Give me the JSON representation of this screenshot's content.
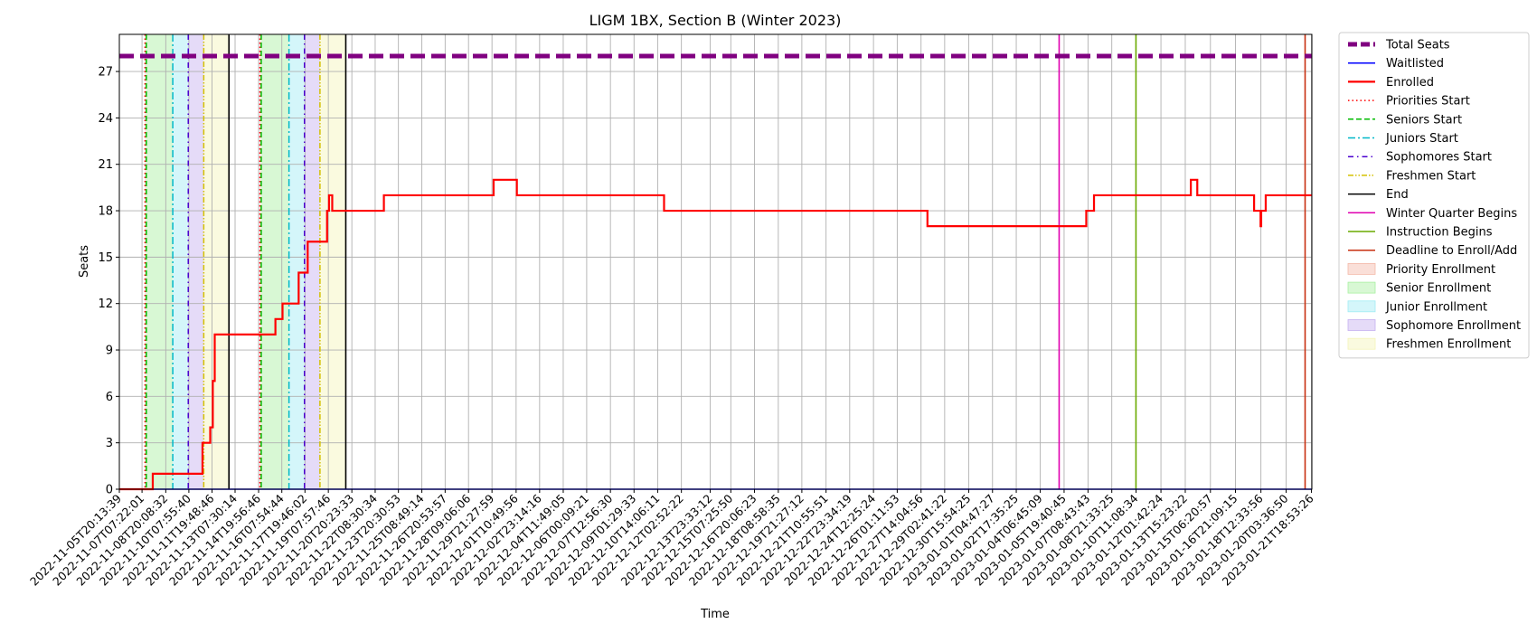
{
  "chart_data": {
    "type": "line",
    "title": "LIGM 1BX, Section B (Winter 2023)",
    "xlabel": "Time",
    "ylabel": "Seats",
    "ylim": [
      0,
      29.4
    ],
    "yticks": [
      0,
      3,
      6,
      9,
      12,
      15,
      18,
      21,
      24,
      27
    ],
    "xlim": [
      "2022-11-05T20:13:39",
      "2023-01-21T19:30:00"
    ],
    "xticks": [
      "2022-11-05T20:13:39",
      "2022-11-07T07:22:01",
      "2022-11-08T20:08:32",
      "2022-11-10T07:55:40",
      "2022-11-11T19:48:46",
      "2022-11-13T07:30:14",
      "2022-11-14T19:56:46",
      "2022-11-16T07:54:44",
      "2022-11-17T19:46:02",
      "2022-11-19T07:57:46",
      "2022-11-20T20:23:33",
      "2022-11-22T08:30:34",
      "2022-11-23T20:30:53",
      "2022-11-25T08:49:14",
      "2022-11-26T20:53:57",
      "2022-11-28T09:06:06",
      "2022-11-29T21:27:59",
      "2022-12-01T10:49:56",
      "2022-12-02T23:14:16",
      "2022-12-04T11:49:05",
      "2022-12-06T00:09:21",
      "2022-12-07T12:56:30",
      "2022-12-09T01:29:33",
      "2022-12-10T14:06:11",
      "2022-12-12T02:52:22",
      "2022-12-13T23:33:12",
      "2022-12-15T07:25:50",
      "2022-12-16T20:06:23",
      "2022-12-18T08:58:35",
      "2022-12-19T21:27:12",
      "2022-12-21T10:55:51",
      "2022-12-22T23:34:19",
      "2022-12-24T12:25:24",
      "2022-12-26T01:11:53",
      "2022-12-27T14:04:56",
      "2022-12-29T02:41:22",
      "2022-12-30T15:54:25",
      "2023-01-01T04:47:27",
      "2023-01-02T17:35:25",
      "2023-01-04T06:45:09",
      "2023-01-05T19:40:45",
      "2023-01-07T08:43:43",
      "2023-01-08T21:33:25",
      "2023-01-10T11:08:34",
      "2023-01-12T01:42:24",
      "2023-01-13T15:23:22",
      "2023-01-15T06:20:57",
      "2023-01-16T21:09:15",
      "2023-01-18T12:33:56",
      "2023-01-20T03:36:50",
      "2023-01-21T18:53:26"
    ],
    "grid": true,
    "legend_position": "outside-right",
    "series": [
      {
        "name": "Total Seats",
        "color": "#800080",
        "style": "dashed-thick",
        "x": [
          "2022-11-05T20:13:39",
          "2023-01-21T19:30:00"
        ],
        "y": [
          28,
          28
        ]
      },
      {
        "name": "Waitlisted",
        "color": "#0000ff",
        "style": "solid",
        "x": [
          "2022-11-05T20:13:39",
          "2023-01-21T19:30:00"
        ],
        "y": [
          0,
          0
        ]
      },
      {
        "name": "Enrolled",
        "color": "#ff0000",
        "style": "solid-thick",
        "x": [
          "2022-11-05T20:13:39",
          "2022-11-08T00:00:00",
          "2022-11-08T00:00:01",
          "2022-11-11T05:00:00",
          "2022-11-11T05:00:01",
          "2022-11-11T17:00:00",
          "2022-11-11T17:00:01",
          "2022-11-11T21:00:00",
          "2022-11-11T21:00:01",
          "2022-11-12T00:00:00",
          "2022-11-12T00:00:01",
          "2022-11-12T03:00:00",
          "2022-11-12T03:00:01",
          "2022-11-15T22:00:00",
          "2022-11-15T22:00:01",
          "2022-11-16T09:00:00",
          "2022-11-16T09:00:01",
          "2022-11-17T10:00:00",
          "2022-11-17T10:00:01",
          "2022-11-18T00:00:00",
          "2022-11-18T00:00:01",
          "2022-11-19T06:00:00",
          "2022-11-19T06:00:01",
          "2022-11-19T09:00:00",
          "2022-11-19T09:00:01",
          "2022-11-19T14:00:00",
          "2022-11-19T14:00:01",
          "2022-11-19T19:00:00",
          "2022-11-19T19:00:01",
          "2022-11-22T22:00:00",
          "2022-11-22T22:00:01",
          "2022-11-30T00:00:00",
          "2022-11-30T00:00:01",
          "2022-12-01T12:00:00",
          "2022-12-01T12:00:01",
          "2022-12-11T00:00:00",
          "2022-12-11T00:00:01",
          "2022-12-28T00:00:00",
          "2022-12-28T00:00:01",
          "2023-01-07T06:00:00",
          "2023-01-07T06:00:01",
          "2023-01-07T18:00:00",
          "2023-01-07T18:00:01",
          "2023-01-14T00:00:00",
          "2023-01-14T00:00:01",
          "2023-01-14T10:00:00",
          "2023-01-14T10:00:01",
          "2023-01-14T16:00:00",
          "2023-01-14T16:00:01",
          "2023-01-18T02:00:00",
          "2023-01-18T02:00:01",
          "2023-01-18T12:00:00",
          "2023-01-18T12:00:01",
          "2023-01-18T13:00:00",
          "2023-01-18T13:00:01",
          "2023-01-18T20:00:00",
          "2023-01-18T20:00:01",
          "2023-01-19T00:00:00",
          "2023-01-19T00:00:01",
          "2023-01-21T19:30:00"
        ],
        "y": [
          0,
          0,
          1,
          1,
          3,
          3,
          4,
          4,
          7,
          7,
          10,
          10,
          10,
          10,
          11,
          11,
          12,
          12,
          14,
          14,
          16,
          16,
          18,
          18,
          19,
          19,
          18,
          18,
          18,
          18,
          19,
          19,
          20,
          20,
          19,
          19,
          18,
          18,
          17,
          17,
          18,
          18,
          19,
          19,
          20,
          20,
          19,
          19,
          19,
          19,
          18,
          18,
          17,
          17,
          18,
          18,
          19,
          19,
          19,
          19
        ]
      },
      {
        "name": "Priorities Start",
        "color": "#ff0000",
        "style": "dotted",
        "vlines": [
          "2022-11-07T12:00:00",
          "2022-11-14T22:00:00"
        ]
      },
      {
        "name": "Seniors Start",
        "color": "#00bb00",
        "style": "dashed",
        "vlines": [
          "2022-11-07T14:00:00",
          "2022-11-15T00:00:00"
        ]
      },
      {
        "name": "Juniors Start",
        "color": "#00b8c8",
        "style": "dashdot",
        "vlines": [
          "2022-11-09T07:00:00",
          "2022-11-16T19:00:00"
        ]
      },
      {
        "name": "Sophomores Start",
        "color": "#4b00cf",
        "style": "dashdot-dense",
        "vlines": [
          "2022-11-10T07:00:00",
          "2022-11-17T19:00:00"
        ]
      },
      {
        "name": "Freshmen Start",
        "color": "#d4c000",
        "style": "dashdotdot",
        "vlines": [
          "2022-11-11T07:00:00",
          "2022-11-18T19:00:00"
        ]
      },
      {
        "name": "End",
        "color": "#000000",
        "style": "solid",
        "vlines": [
          "2022-11-12T22:00:00",
          "2022-11-20T11:00:00"
        ]
      },
      {
        "name": "Winter Quarter Begins",
        "color": "#e000b0",
        "style": "solid",
        "vlines": [
          "2023-01-05T12:00:00"
        ]
      },
      {
        "name": "Instruction Begins",
        "color": "#6aaa00",
        "style": "solid",
        "vlines": [
          "2023-01-10T11:00:00"
        ]
      },
      {
        "name": "Deadline to Enroll/Add",
        "color": "#c83010",
        "style": "solid",
        "vlines": [
          "2023-01-21T09:00:00"
        ]
      }
    ],
    "spans": [
      {
        "name": "Priority Enrollment",
        "color": "#f4b9a8",
        "ranges": [
          [
            "2022-11-07T12:00:00",
            "2022-11-07T14:00:00"
          ],
          [
            "2022-11-14T22:00:00",
            "2022-11-15T00:00:00"
          ]
        ]
      },
      {
        "name": "Senior Enrollment",
        "color": "#a8f0a0",
        "ranges": [
          [
            "2022-11-07T14:00:00",
            "2022-11-09T07:00:00"
          ],
          [
            "2022-11-15T00:00:00",
            "2022-11-16T19:00:00"
          ]
        ]
      },
      {
        "name": "Junior Enrollment",
        "color": "#a0ecf4",
        "ranges": [
          [
            "2022-11-09T07:00:00",
            "2022-11-10T07:00:00"
          ],
          [
            "2022-11-16T19:00:00",
            "2022-11-17T19:00:00"
          ]
        ]
      },
      {
        "name": "Sophomore Enrollment",
        "color": "#c6b0f0",
        "ranges": [
          [
            "2022-11-10T07:00:00",
            "2022-11-11T07:00:00"
          ],
          [
            "2022-11-17T19:00:00",
            "2022-11-18T19:00:00"
          ]
        ]
      },
      {
        "name": "Freshmen Enrollment",
        "color": "#f4f4b8",
        "ranges": [
          [
            "2022-11-11T07:00:00",
            "2022-11-12T22:00:00"
          ],
          [
            "2022-11-18T19:00:00",
            "2022-11-20T11:00:00"
          ]
        ]
      }
    ]
  }
}
